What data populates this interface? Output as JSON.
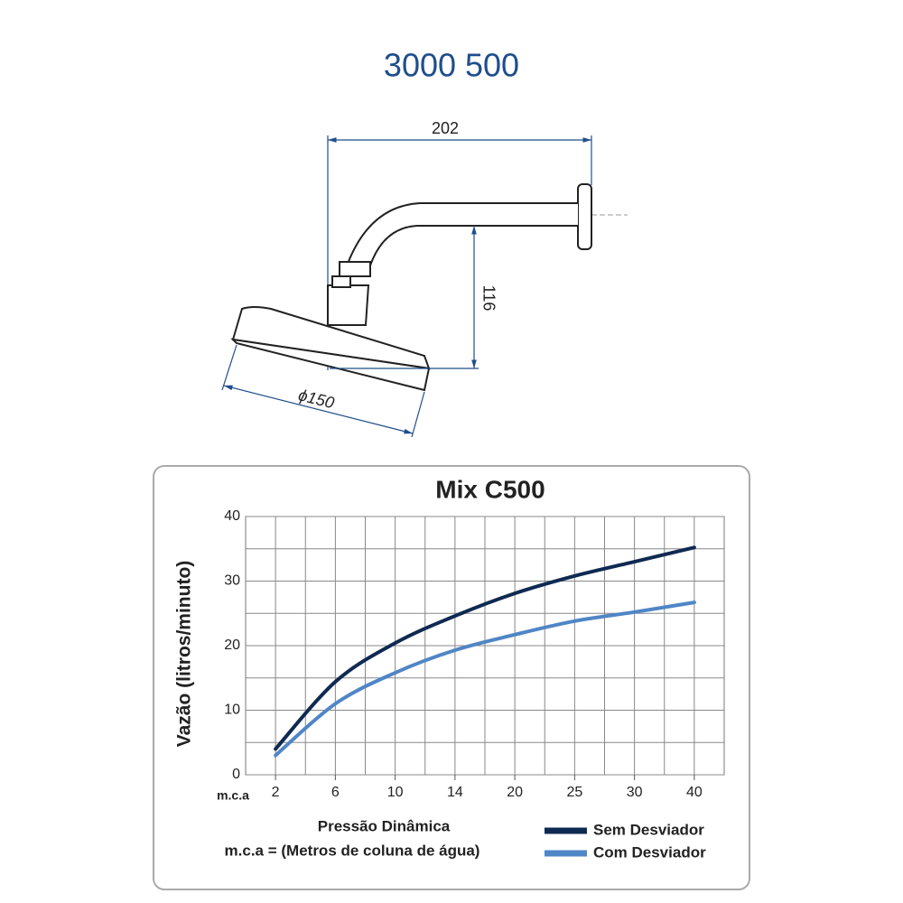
{
  "header": {
    "title": "3000 500"
  },
  "drawing": {
    "width_dimension": "202",
    "height_dimension": "116",
    "diameter_dimension": "ϕ150"
  },
  "chart_data": {
    "type": "line",
    "title": "Mix C500",
    "y_label": "Vazão (litros/minuto)",
    "x_label": "Pressão Dinâmica",
    "x_unit": "m.c.a",
    "x_note": "m.c.a = (Metros de coluna de água)",
    "categories": [
      "2",
      "6",
      "10",
      "14",
      "20",
      "25",
      "30",
      "40"
    ],
    "series": [
      {
        "name": "Sem Desviador",
        "color": "#0f2a52",
        "values": [
          4,
          14.4,
          20.4,
          24.6,
          28.1,
          30.8,
          33,
          35.2
        ]
      },
      {
        "name": "Com Desviador",
        "color": "#4f86c6",
        "values": [
          3,
          11,
          15.8,
          19.3,
          21.7,
          23.8,
          25.2,
          26.7
        ]
      }
    ],
    "ylim": [
      0,
      40
    ],
    "yticks": [
      0,
      10,
      20,
      30,
      40
    ],
    "grid": true
  }
}
